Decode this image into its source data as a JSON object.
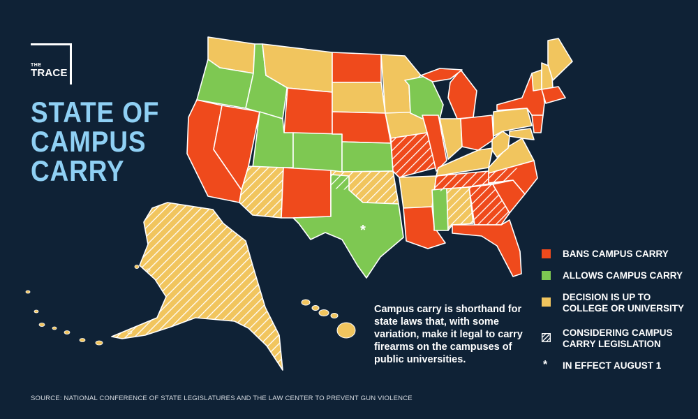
{
  "logo": {
    "line1": "THE",
    "line2": "TRACE"
  },
  "title": {
    "line1": "STATE OF",
    "line2": "CAMPUS",
    "line3": "CARRY"
  },
  "colors": {
    "bans": "#ef4a1c",
    "allows": "#7ec852",
    "decision": "#f1c55e",
    "background": "#0f2236",
    "title": "#8fd0f4"
  },
  "legend": {
    "bans": "BANS CAMPUS CARRY",
    "allows": "ALLOWS CAMPUS CARRY",
    "decision_line1": "DECISION IS UP TO",
    "decision_line2": "COLLEGE OR UNIVERSITY",
    "considering_line1": "CONSIDERING CAMPUS",
    "considering_line2": "CARRY LEGISLATION",
    "effect_symbol": "*",
    "effect": "IN EFFECT AUGUST 1"
  },
  "note": "Campus carry is shorthand for state laws that, with some variation, make it legal to carry firearms on the campuses of public universities.",
  "source": "SOURCE: NATIONAL CONFERENCE OF STATE LEGISLATURES AND THE LAW CENTER TO PREVENT GUN VIOLENCE",
  "texas_marker": "*",
  "states": {
    "WA": {
      "status": "decision",
      "considering": false
    },
    "OR": {
      "status": "allows",
      "considering": false
    },
    "CA": {
      "status": "bans",
      "considering": false
    },
    "NV": {
      "status": "bans",
      "considering": false
    },
    "ID": {
      "status": "allows",
      "considering": false
    },
    "MT": {
      "status": "decision",
      "considering": false
    },
    "WY": {
      "status": "bans",
      "considering": false
    },
    "UT": {
      "status": "allows",
      "considering": false
    },
    "CO": {
      "status": "allows",
      "considering": false
    },
    "AZ": {
      "status": "decision",
      "considering": true
    },
    "NM": {
      "status": "bans",
      "considering": false
    },
    "ND": {
      "status": "bans",
      "considering": false
    },
    "SD": {
      "status": "decision",
      "considering": false
    },
    "NE": {
      "status": "bans",
      "considering": false
    },
    "KS": {
      "status": "allows",
      "considering": false
    },
    "OK": {
      "status": "decision",
      "considering": true
    },
    "TX": {
      "status": "allows",
      "considering": false
    },
    "MN": {
      "status": "decision",
      "considering": false
    },
    "IA": {
      "status": "decision",
      "considering": false
    },
    "MO": {
      "status": "bans",
      "considering": true
    },
    "AR": {
      "status": "decision",
      "considering": false
    },
    "LA": {
      "status": "bans",
      "considering": false
    },
    "WI": {
      "status": "allows",
      "considering": false
    },
    "IL": {
      "status": "bans",
      "considering": false
    },
    "MI": {
      "status": "bans",
      "considering": false
    },
    "IN": {
      "status": "decision",
      "considering": false
    },
    "OH": {
      "status": "bans",
      "considering": false
    },
    "KY": {
      "status": "decision",
      "considering": false
    },
    "TN": {
      "status": "bans",
      "considering": true
    },
    "MS": {
      "status": "allows",
      "considering": false
    },
    "AL": {
      "status": "decision",
      "considering": true
    },
    "GA": {
      "status": "bans",
      "considering": true
    },
    "FL": {
      "status": "bans",
      "considering": false
    },
    "SC": {
      "status": "bans",
      "considering": false
    },
    "NC": {
      "status": "bans",
      "considering": false
    },
    "VA": {
      "status": "decision",
      "considering": false
    },
    "WV": {
      "status": "decision",
      "considering": false
    },
    "PA": {
      "status": "decision",
      "considering": false
    },
    "NY": {
      "status": "bans",
      "considering": false
    },
    "VT": {
      "status": "decision",
      "considering": false
    },
    "NH": {
      "status": "decision",
      "considering": false
    },
    "ME": {
      "status": "decision",
      "considering": false
    },
    "MA": {
      "status": "bans",
      "considering": false
    },
    "NJ": {
      "status": "bans",
      "considering": false
    },
    "MD": {
      "status": "decision",
      "considering": false
    },
    "AK": {
      "status": "decision",
      "considering": true
    },
    "HI": {
      "status": "decision",
      "considering": false
    }
  }
}
